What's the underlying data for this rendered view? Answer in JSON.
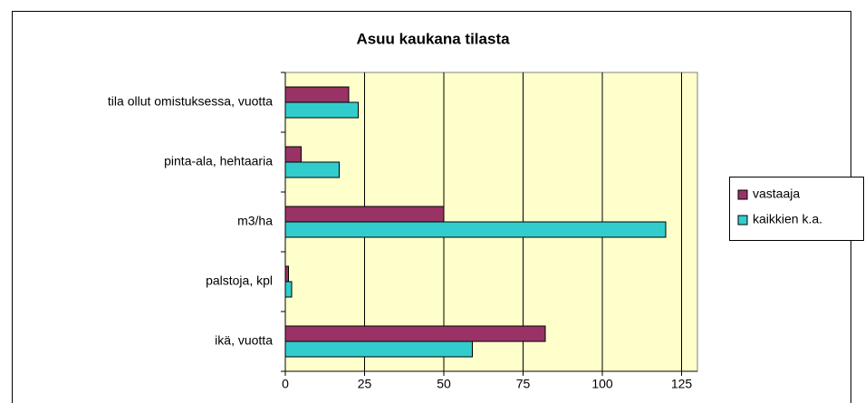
{
  "chart_data": {
    "type": "barh",
    "title": "Asuu kaukana tilasta",
    "categories": [
      "tila ollut omistuksessa, vuotta",
      "pinta-ala, hehtaaria",
      "m3/ha",
      "palstoja, kpl",
      "ikä, vuotta"
    ],
    "series": [
      {
        "name": "vastaaja",
        "color": "#993366",
        "values": [
          20,
          5,
          50,
          1,
          82
        ]
      },
      {
        "name": "kaikkien k.a.",
        "color": "#33CCCC",
        "values": [
          23,
          17,
          120,
          2,
          59
        ]
      }
    ],
    "xlim": [
      0,
      130
    ],
    "xticks": [
      0,
      25,
      50,
      75,
      100,
      125
    ],
    "grid": true,
    "legend": "right"
  }
}
